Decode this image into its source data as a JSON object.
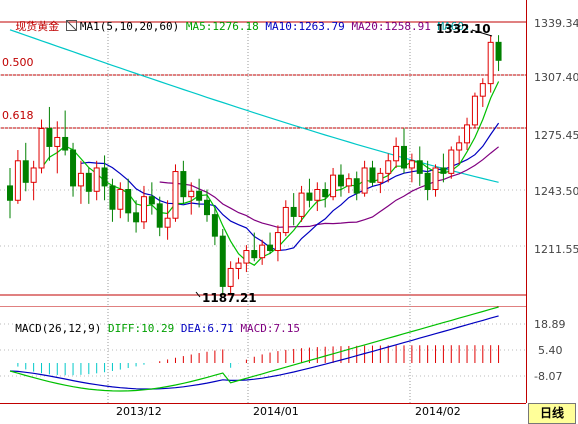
{
  "header": {
    "symbol": "现货黄金",
    "ma_label": "MA1(5,10,20,60)",
    "ma5": "MA5:1276.18",
    "ma10": "MA10:1263.79",
    "ma20": "MA20:1258.91",
    "ma60": "MA60:"
  },
  "fib": {
    "a": "0.500",
    "b": "0.618"
  },
  "annotations": {
    "high": "1332.10",
    "low": "1187.21"
  },
  "price_axis": [
    "1339.34",
    "1307.40",
    "1275.45",
    "1243.50",
    "1211.55"
  ],
  "macd_header": {
    "label": "MACD(26,12,9)",
    "diff": "DIFF:10.29",
    "dea": "DEA:6.71",
    "macd": "MACD:7.15"
  },
  "macd_axis": [
    "18.89",
    "5.40",
    "-8.07"
  ],
  "dates": [
    "2013/12",
    "2014/01",
    "2014/02"
  ],
  "period_button": "日线",
  "colors": {
    "up": "#e00000",
    "down": "#008000",
    "ma5": "#00c000",
    "ma10": "#0000c0",
    "ma20": "#800080",
    "ma60": "#00c8c8",
    "macd_up": "#e00000",
    "macd_down": "#00c8c8"
  },
  "chart_data": {
    "type": "candlestick",
    "candles": [
      [
        1248,
        1258,
        1230,
        1240
      ],
      [
        1240,
        1268,
        1238,
        1262
      ],
      [
        1262,
        1272,
        1245,
        1250
      ],
      [
        1250,
        1262,
        1240,
        1258
      ],
      [
        1258,
        1285,
        1255,
        1280
      ],
      [
        1280,
        1292,
        1262,
        1270
      ],
      [
        1270,
        1284,
        1255,
        1275
      ],
      [
        1275,
        1290,
        1265,
        1268
      ],
      [
        1268,
        1272,
        1242,
        1248
      ],
      [
        1248,
        1262,
        1238,
        1255
      ],
      [
        1255,
        1258,
        1238,
        1245
      ],
      [
        1245,
        1262,
        1240,
        1258
      ],
      [
        1258,
        1265,
        1240,
        1248
      ],
      [
        1248,
        1252,
        1228,
        1235
      ],
      [
        1235,
        1250,
        1230,
        1246
      ],
      [
        1246,
        1252,
        1228,
        1233
      ],
      [
        1233,
        1240,
        1222,
        1228
      ],
      [
        1228,
        1248,
        1224,
        1242
      ],
      [
        1242,
        1250,
        1232,
        1238
      ],
      [
        1238,
        1242,
        1220,
        1225
      ],
      [
        1225,
        1240,
        1218,
        1230
      ],
      [
        1230,
        1260,
        1228,
        1256
      ],
      [
        1256,
        1262,
        1238,
        1242
      ],
      [
        1242,
        1250,
        1232,
        1245
      ],
      [
        1245,
        1252,
        1236,
        1240
      ],
      [
        1240,
        1246,
        1228,
        1232
      ],
      [
        1232,
        1236,
        1215,
        1220
      ],
      [
        1220,
        1224,
        1187,
        1192
      ],
      [
        1192,
        1206,
        1188,
        1202
      ],
      [
        1202,
        1208,
        1196,
        1205
      ],
      [
        1205,
        1215,
        1200,
        1212
      ],
      [
        1212,
        1222,
        1206,
        1208
      ],
      [
        1208,
        1218,
        1204,
        1215
      ],
      [
        1215,
        1222,
        1210,
        1212
      ],
      [
        1212,
        1226,
        1206,
        1222
      ],
      [
        1222,
        1240,
        1220,
        1236
      ],
      [
        1236,
        1244,
        1226,
        1231
      ],
      [
        1231,
        1248,
        1228,
        1244
      ],
      [
        1244,
        1252,
        1236,
        1240
      ],
      [
        1240,
        1250,
        1234,
        1246
      ],
      [
        1246,
        1250,
        1236,
        1242
      ],
      [
        1242,
        1258,
        1240,
        1254
      ],
      [
        1254,
        1260,
        1242,
        1248
      ],
      [
        1248,
        1255,
        1244,
        1252
      ],
      [
        1252,
        1256,
        1240,
        1244
      ],
      [
        1244,
        1262,
        1242,
        1258
      ],
      [
        1258,
        1262,
        1248,
        1250
      ],
      [
        1250,
        1258,
        1244,
        1255
      ],
      [
        1255,
        1266,
        1250,
        1262
      ],
      [
        1262,
        1275,
        1258,
        1270
      ],
      [
        1270,
        1280,
        1255,
        1258
      ],
      [
        1258,
        1266,
        1250,
        1262
      ],
      [
        1262,
        1270,
        1248,
        1255
      ],
      [
        1255,
        1262,
        1240,
        1246
      ],
      [
        1246,
        1260,
        1242,
        1258
      ],
      [
        1258,
        1266,
        1250,
        1255
      ],
      [
        1255,
        1270,
        1252,
        1268
      ],
      [
        1268,
        1276,
        1260,
        1272
      ],
      [
        1272,
        1286,
        1268,
        1282
      ],
      [
        1282,
        1300,
        1280,
        1298
      ],
      [
        1298,
        1308,
        1292,
        1305
      ],
      [
        1305,
        1332,
        1300,
        1328
      ],
      [
        1328,
        1332,
        1312,
        1318
      ]
    ],
    "macd": {
      "axis_range": [
        -8.07,
        18.89
      ],
      "zero": 0
    }
  }
}
